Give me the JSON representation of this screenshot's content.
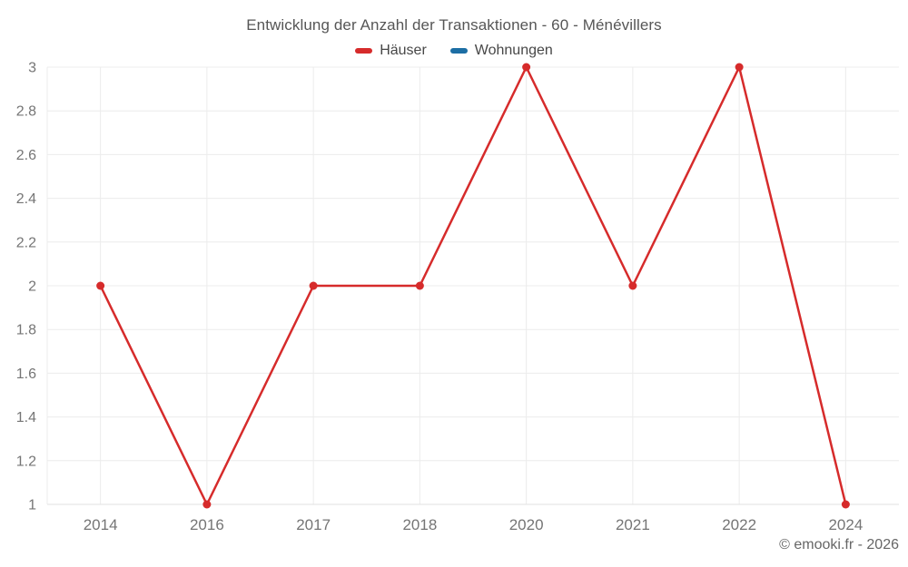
{
  "page": {
    "copyright": "© emooki.fr - 2026",
    "background": "#ffffff"
  },
  "chart_data": {
    "type": "line",
    "title": "Entwicklung der Anzahl der Transaktionen - 60 - Ménévillers",
    "categories": [
      "2014",
      "2016",
      "2017",
      "2018",
      "2020",
      "2021",
      "2022",
      "2024"
    ],
    "series": [
      {
        "name": "Häuser",
        "color": "#d62b2b",
        "values": [
          2,
          1,
          2,
          2,
          3,
          2,
          3,
          1
        ]
      },
      {
        "name": "Wohnungen",
        "color": "#1c6ea4",
        "values": []
      }
    ],
    "xlabel": "",
    "ylabel": "",
    "ylim": [
      1,
      3
    ],
    "yticks": [
      1,
      1.2,
      1.4,
      1.6,
      1.8,
      2,
      2.2,
      2.4,
      2.6,
      2.8,
      3
    ],
    "ytick_labels": [
      "1",
      "1.2",
      "1.4",
      "1.6",
      "1.8",
      "2",
      "2.2",
      "2.4",
      "2.6",
      "2.8",
      "3"
    ],
    "grid": true,
    "legend_position": "top",
    "colors": {
      "grid_line": "#ececec",
      "axis_line": "#e2e2e2",
      "tick_text": "#757575",
      "title_text": "#565656",
      "legend_text": "#474747",
      "copyright_text": "#666666"
    }
  }
}
